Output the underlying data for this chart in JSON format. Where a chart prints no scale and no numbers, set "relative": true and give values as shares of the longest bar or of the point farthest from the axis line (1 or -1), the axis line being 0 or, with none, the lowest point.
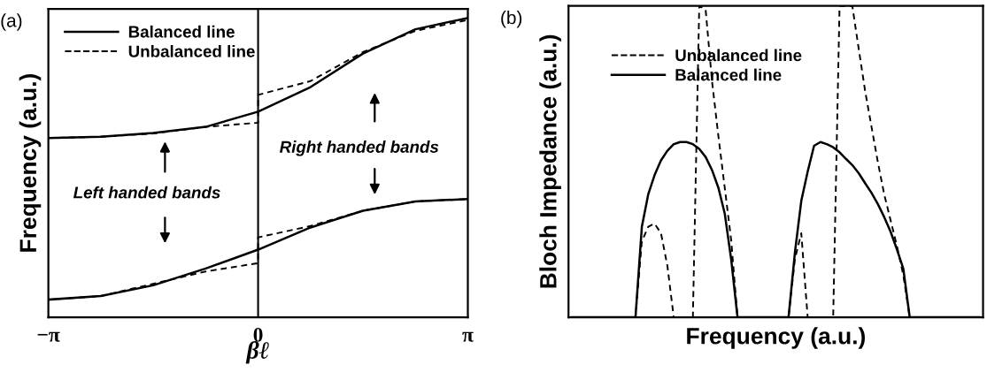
{
  "chart_data": [
    {
      "type": "line",
      "title": "(a)",
      "xlabel": "βℓ",
      "ylabel": "Frequency (a.u.)",
      "relative": true,
      "xlim": [
        -3.1416,
        3.1416
      ],
      "xticks": [
        {
          "value": -3.1416,
          "label": "−π"
        },
        0,
        {
          "value": 3.1416,
          "label": "π"
        }
      ],
      "tick_labels": "x",
      "grid": false,
      "legend": "top left",
      "marker": "none",
      "x": [
        -3.1416,
        -2.3562,
        -1.5708,
        -0.7854,
        0,
        0.7854,
        1.5708,
        2.3562,
        3.1416
      ],
      "ref_lines": [
        {
          "axis": "x",
          "value": 0,
          "color": "#000000",
          "line_style": "solid"
        }
      ],
      "annotations": [
        "Left handed bands",
        "Right handed bands"
      ],
      "series": [
        {
          "name": "Balanced line",
          "color": "#000000",
          "line_style": "solid",
          "values": [
            0.599,
            0.603,
            0.616,
            0.636,
            0.687,
            0.769,
            0.881,
            0.962,
            1.0
          ]
        },
        {
          "color": "#000000",
          "line_style": "solid",
          "values": [
            0.059,
            0.071,
            0.107,
            0.163,
            0.226,
            0.3,
            0.356,
            0.387,
            0.395
          ]
        },
        {
          "name": "Unbalanced line",
          "color": "#000000",
          "line_style": "dashed",
          "x": [
            -3.1416,
            -2.3562,
            -1.5708,
            -0.7854,
            0,
            0,
            0.7854,
            1.5708,
            2.3562,
            3.1416
          ],
          "values": [
            0.599,
            0.603,
            0.614,
            0.636,
            0.65,
            0.743,
            0.789,
            0.886,
            0.957,
            0.993
          ]
        },
        {
          "color": "#000000",
          "line_style": "dashed",
          "x": [
            -3.1416,
            -2.3562,
            -1.5708,
            -0.7854,
            0,
            0,
            0.7854,
            1.5708,
            2.3562,
            3.1416
          ],
          "values": [
            0.059,
            0.071,
            0.112,
            0.153,
            0.181,
            0.267,
            0.305,
            0.356,
            0.387,
            0.395
          ]
        }
      ]
    },
    {
      "type": "line",
      "title": "(b)",
      "xlabel": "Frequency (a.u.)",
      "ylabel": "Bloch Impedance (a.u.)",
      "relative": true,
      "tick_labels": false,
      "grid": false,
      "legend": "top left",
      "marker": "none",
      "categories": [
        null,
        null,
        null,
        null,
        null,
        null,
        null,
        null,
        null,
        null,
        null,
        null,
        null,
        null,
        null,
        null,
        null,
        null,
        null,
        null,
        null,
        null,
        null,
        null,
        null,
        null,
        null,
        null,
        null,
        null,
        null,
        null,
        null,
        null,
        null,
        null,
        null,
        null,
        null,
        null,
        null,
        null,
        null,
        null,
        null,
        null,
        null,
        null,
        null,
        null,
        null,
        null,
        null,
        null,
        null,
        null,
        null,
        null,
        null,
        null,
        null,
        null,
        null,
        null,
        null
      ],
      "series": [
        {
          "name": "Unbalanced line",
          "color": "#000000",
          "line_style": "dashed",
          "values": [
            0,
            0,
            0,
            0,
            0,
            0,
            0,
            0,
            0,
            0,
            0,
            0.244,
            0.291,
            0.301,
            0.27,
            0.166,
            0,
            0,
            0,
            0,
            1.0,
            0.988,
            0.759,
            0.582,
            0.416,
            0.249,
            0,
            0,
            0,
            0,
            0,
            0,
            0,
            0,
            0,
            0.187,
            0.27,
            0,
            0,
            0,
            0,
            0,
            1.0,
            1.0,
            1.0,
            0.863,
            0.728,
            0.613,
            0.499,
            0.395,
            0.312,
            0.229,
            0.135,
            0,
            0,
            0,
            0,
            0,
            0,
            0,
            0,
            0,
            0,
            0,
            0
          ]
        },
        {
          "name": "Balanced line",
          "color": "#000000",
          "line_style": "solid",
          "values": [
            0,
            0,
            0,
            0,
            0,
            0,
            0,
            0,
            0,
            0,
            0,
            0.291,
            0.395,
            0.457,
            0.504,
            0.535,
            0.556,
            0.563,
            0.563,
            0.556,
            0.541,
            0.515,
            0.473,
            0.416,
            0.333,
            0.187,
            0,
            0,
            0,
            0,
            0,
            0,
            0,
            0,
            0,
            0.208,
            0.374,
            0.468,
            0.551,
            0.563,
            0.556,
            0.546,
            0.53,
            0.509,
            0.489,
            0.463,
            0.431,
            0.4,
            0.364,
            0.322,
            0.275,
            0.218,
            0.156,
            0,
            0,
            0,
            0,
            0,
            0,
            0,
            0,
            0,
            0,
            0,
            0
          ]
        }
      ]
    }
  ]
}
